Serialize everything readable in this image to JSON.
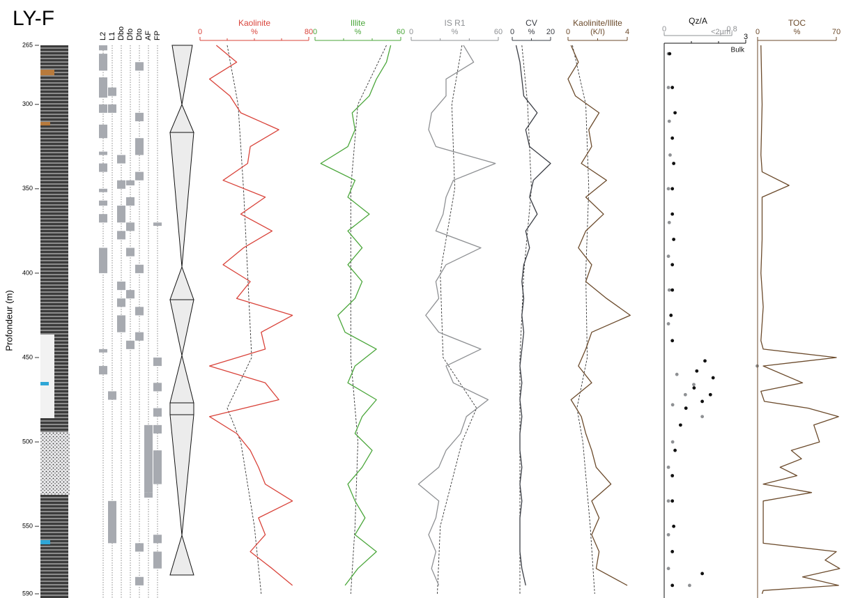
{
  "chart_data": {
    "title": "LY-F",
    "y_label": "Profondeur (m)",
    "ylim": [
      265,
      590
    ],
    "yticks": [
      265,
      300,
      350,
      400,
      450,
      500,
      550,
      590
    ],
    "facies": {
      "type": "interval",
      "color": "#a7aab0",
      "columns": [
        {
          "name": "L2",
          "intervals": [
            [
              265,
              268
            ],
            [
              270,
              280
            ],
            [
              284,
              296
            ],
            [
              300,
              305
            ],
            [
              312,
              320
            ],
            [
              328,
              330
            ],
            [
              335,
              340
            ],
            [
              350,
              352
            ],
            [
              357,
              360
            ],
            [
              365,
              370
            ],
            [
              385,
              400
            ],
            [
              445,
              447
            ],
            [
              455,
              460
            ]
          ]
        },
        {
          "name": "L1",
          "intervals": [
            [
              290,
              295
            ],
            [
              300,
              305
            ],
            [
              470,
              475
            ],
            [
              535,
              560
            ]
          ]
        },
        {
          "name": "Dbo",
          "intervals": [
            [
              330,
              335
            ],
            [
              345,
              350
            ],
            [
              360,
              370
            ],
            [
              375,
              380
            ],
            [
              405,
              410
            ],
            [
              415,
              420
            ],
            [
              425,
              435
            ]
          ]
        },
        {
          "name": "Dfo",
          "intervals": [
            [
              345,
              348
            ],
            [
              355,
              360
            ],
            [
              370,
              375
            ],
            [
              385,
              390
            ],
            [
              410,
              415
            ],
            [
              440,
              445
            ]
          ]
        },
        {
          "name": "Dto",
          "intervals": [
            [
              275,
              280
            ],
            [
              305,
              310
            ],
            [
              320,
              330
            ],
            [
              340,
              345
            ],
            [
              395,
              400
            ],
            [
              420,
              425
            ],
            [
              435,
              440
            ],
            [
              560,
              565
            ],
            [
              580,
              585
            ]
          ]
        },
        {
          "name": "AF",
          "intervals": [
            [
              490,
              530
            ],
            [
              530,
              533
            ]
          ]
        },
        {
          "name": "FP",
          "intervals": [
            [
              370,
              372
            ],
            [
              450,
              455
            ],
            [
              465,
              470
            ],
            [
              480,
              485
            ],
            [
              490,
              495
            ],
            [
              505,
              525
            ],
            [
              555,
              560
            ],
            [
              565,
              575
            ]
          ]
        }
      ]
    },
    "panels": [
      {
        "type": "line",
        "title": "Kaolinite",
        "x_label": "%",
        "xlim": [
          0,
          80
        ],
        "xticks": [
          0,
          80
        ],
        "xminor": [
          20,
          40,
          60
        ],
        "color": "#d9433a",
        "depths": [
          265,
          275,
          285,
          295,
          305,
          315,
          325,
          335,
          345,
          355,
          365,
          375,
          385,
          395,
          405,
          415,
          425,
          435,
          445,
          455,
          465,
          475,
          485,
          495,
          505,
          515,
          525,
          535,
          545,
          555,
          565,
          575,
          585
        ],
        "values": [
          12,
          27,
          7,
          22,
          30,
          58,
          37,
          35,
          17,
          48,
          30,
          53,
          32,
          17,
          37,
          27,
          68,
          45,
          48,
          7,
          48,
          58,
          7,
          27,
          37,
          43,
          48,
          68,
          43,
          48,
          37,
          53,
          68
        ],
        "trend_depths": [
          265,
          300,
          350,
          400,
          450,
          480,
          500,
          550,
          590
        ],
        "trend": [
          20,
          28,
          32,
          35,
          38,
          20,
          30,
          40,
          45
        ]
      },
      {
        "type": "line",
        "title": "Illite",
        "x_label": "%",
        "xlim": [
          0,
          60
        ],
        "xticks": [
          0,
          60
        ],
        "xminor": [
          20,
          40
        ],
        "color": "#4aa63a",
        "depths": [
          265,
          275,
          285,
          295,
          305,
          315,
          325,
          335,
          345,
          355,
          365,
          375,
          385,
          395,
          405,
          415,
          425,
          435,
          445,
          455,
          465,
          475,
          485,
          495,
          505,
          515,
          525,
          535,
          545,
          555,
          565,
          575,
          585
        ],
        "values": [
          53,
          50,
          43,
          38,
          26,
          28,
          23,
          4,
          28,
          23,
          38,
          23,
          33,
          23,
          33,
          28,
          16,
          21,
          43,
          28,
          23,
          43,
          33,
          28,
          40,
          33,
          23,
          28,
          35,
          28,
          43,
          30,
          21
        ],
        "trend_depths": [
          265,
          300,
          350,
          400,
          450,
          480,
          500,
          550,
          590
        ],
        "trend": [
          50,
          30,
          25,
          25,
          25,
          28,
          30,
          28,
          25
        ]
      },
      {
        "type": "line",
        "title": "IS R1",
        "x_label": "%",
        "xlim": [
          0,
          60
        ],
        "xticks": [
          0,
          60
        ],
        "xminor": [
          20,
          40
        ],
        "color": "#8e9093",
        "depths": [
          265,
          275,
          285,
          295,
          305,
          315,
          325,
          335,
          345,
          355,
          365,
          375,
          385,
          395,
          405,
          415,
          425,
          435,
          445,
          455,
          465,
          475,
          485,
          495,
          505,
          515,
          525,
          535,
          545,
          555,
          565,
          575,
          585
        ],
        "values": [
          36,
          43,
          24,
          24,
          14,
          12,
          17,
          58,
          29,
          24,
          22,
          17,
          48,
          24,
          17,
          19,
          10,
          19,
          48,
          24,
          29,
          53,
          38,
          34,
          24,
          19,
          5,
          19,
          17,
          12,
          17,
          14,
          19
        ],
        "trend_depths": [
          265,
          300,
          350,
          400,
          450,
          480,
          500,
          550,
          590
        ],
        "trend": [
          35,
          28,
          30,
          20,
          22,
          45,
          35,
          20,
          18
        ]
      },
      {
        "type": "line",
        "title": "CV",
        "x_label": "%",
        "xlim": [
          0,
          20
        ],
        "xticks": [
          0,
          20
        ],
        "xminor": [
          10
        ],
        "color": "#3a3d44",
        "depths": [
          265,
          275,
          285,
          295,
          305,
          315,
          325,
          335,
          345,
          355,
          365,
          375,
          385,
          395,
          405,
          415,
          425,
          435,
          445,
          455,
          465,
          475,
          485,
          495,
          505,
          515,
          525,
          535,
          545,
          555,
          565,
          575,
          585
        ],
        "values": [
          2,
          4,
          5,
          6,
          13,
          7,
          9,
          20,
          11,
          9,
          13,
          7,
          9,
          6,
          5,
          6,
          5,
          6,
          5,
          4,
          5,
          4,
          5,
          4,
          4,
          5,
          4,
          5,
          4,
          4,
          4,
          5,
          7
        ],
        "trend_depths": [
          265,
          300,
          350,
          400,
          450,
          480,
          500,
          550,
          590
        ],
        "trend": [
          5,
          8,
          10,
          6,
          4,
          4,
          4,
          4,
          4
        ]
      },
      {
        "type": "line",
        "title": "Kaolinite/Illite",
        "x_label": "(K/I)",
        "xlim": [
          0,
          4
        ],
        "xticks": [
          0,
          4
        ],
        "xminor": [
          2
        ],
        "color": "#6b4a2b",
        "depths": [
          265,
          275,
          285,
          295,
          305,
          315,
          325,
          335,
          345,
          355,
          365,
          375,
          385,
          395,
          405,
          415,
          425,
          435,
          445,
          455,
          465,
          475,
          485,
          495,
          505,
          515,
          525,
          535,
          545,
          555,
          565,
          575,
          585
        ],
        "values": [
          0.2,
          0.7,
          0,
          0.5,
          2.1,
          1.4,
          1.6,
          0.9,
          2.6,
          1.2,
          2.4,
          1.2,
          0.7,
          1.6,
          1.2,
          2.6,
          4.2,
          1.6,
          1.2,
          0.7,
          1.6,
          0.2,
          0.9,
          1.2,
          1.6,
          1.9,
          2.9,
          1.6,
          2.1,
          1.6,
          2.1,
          1.9,
          4
        ],
        "trend_depths": [
          265,
          300,
          350,
          400,
          450,
          480,
          500,
          550,
          590
        ],
        "trend": [
          0.3,
          1.2,
          1.4,
          1.2,
          1.3,
          0.6,
          1,
          1.5,
          1.8
        ]
      },
      {
        "type": "scatter",
        "title": "Qz/A",
        "xlim": [
          0,
          3
        ],
        "xticks": [
          3
        ],
        "xminor": [
          1,
          2
        ],
        "x_label": "Bulk",
        "x2lim": [
          0,
          0.8
        ],
        "x2ticks": [
          0,
          {
            "value": 0.8,
            "label": "0,8"
          }
        ],
        "x2_label": "<2µm",
        "series": [
          {
            "axis": "x2",
            "color": "#8e9093",
            "depths": [
              270,
              290,
              310,
              330,
              350,
              370,
              390,
              410,
              430,
              455,
              460,
              466,
              472,
              478,
              485,
              500,
              515,
              535,
              555,
              575,
              585
            ],
            "values": [
              0.05,
              0.05,
              0.06,
              0.07,
              0.05,
              0.06,
              0.05,
              0.06,
              0.05,
              1.1,
              0.15,
              0.35,
              0.25,
              0.1,
              0.45,
              0.1,
              0.05,
              0.05,
              0.05,
              0.05,
              0.3
            ]
          },
          {
            "color": "#111111",
            "depths": [
              270,
              290,
              305,
              320,
              335,
              350,
              365,
              380,
              395,
              410,
              425,
              440,
              452,
              458,
              462,
              468,
              472,
              476,
              480,
              490,
              505,
              520,
              535,
              550,
              565,
              578,
              585
            ],
            "values": [
              0.2,
              0.3,
              0.4,
              0.3,
              0.35,
              0.3,
              0.3,
              0.35,
              0.3,
              0.3,
              0.25,
              0.3,
              1.5,
              1.2,
              1.8,
              1.1,
              1.7,
              1.4,
              0.8,
              0.6,
              0.4,
              0.3,
              0.3,
              0.35,
              0.3,
              1.4,
              0.3
            ]
          }
        ]
      },
      {
        "type": "line",
        "title": "TOC",
        "x_label": "%",
        "xlim": [
          0,
          70
        ],
        "xticks": [
          0,
          70
        ],
        "xminor": [],
        "color": "#6b4a2b",
        "depths": [
          265,
          300,
          330,
          340,
          348,
          355,
          380,
          400,
          420,
          440,
          445,
          450,
          455,
          465,
          470,
          476,
          480,
          485,
          490,
          500,
          505,
          510,
          515,
          520,
          525,
          530,
          535,
          560,
          565,
          570,
          575,
          580,
          585,
          588,
          590
        ],
        "values": [
          3,
          4,
          3,
          4,
          28,
          4,
          4,
          3,
          5,
          3,
          5,
          70,
          5,
          40,
          3,
          6,
          45,
          72,
          50,
          55,
          30,
          39,
          20,
          35,
          5,
          48,
          5,
          5,
          70,
          60,
          73,
          40,
          72,
          5,
          4
        ]
      }
    ]
  }
}
